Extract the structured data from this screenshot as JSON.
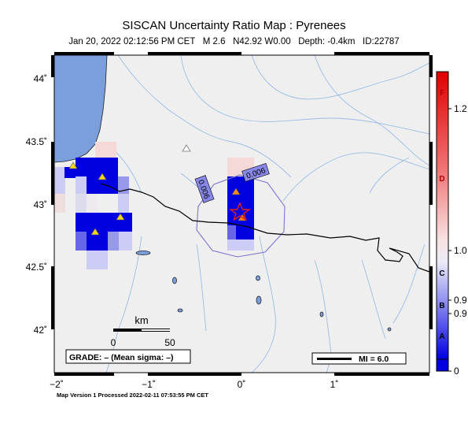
{
  "header": {
    "title": "SISCAN Uncertainty Ratio Map : Pyrenees",
    "subtitle": "Jan 20, 2022 02:12:56 PM CET   M 2.6   N42.92 W0.00   Depth: -0.4km   ID:22787"
  },
  "map": {
    "lat_ticks": [
      {
        "label": "44˚",
        "value": 44.0
      },
      {
        "label": "43.5˚",
        "value": 43.5
      },
      {
        "label": "43˚",
        "value": 43.0
      },
      {
        "label": "42.5˚",
        "value": 42.5
      },
      {
        "label": "42˚",
        "value": 42.0
      }
    ],
    "lon_ticks": [
      {
        "label": "−2˚",
        "value": -2
      },
      {
        "label": "−1˚",
        "value": -1
      },
      {
        "label": "0˚",
        "value": 0
      },
      {
        "label": "1˚",
        "value": 1
      }
    ],
    "contour_labels": [
      "0.006",
      "0.006"
    ],
    "scale_bar": {
      "unit": "km",
      "min_label": "0",
      "max_label": "50"
    },
    "grade_text": "GRADE: – (Mean sigma: –)",
    "mi_text": "MI = 6.0",
    "colors": {
      "ocean": "#7a9fdc",
      "land": "#efefef",
      "rivers": "#9bbce6",
      "border": "#000000",
      "high": "#0000e0"
    }
  },
  "colorbar": {
    "letters": [
      "F",
      "D",
      "C",
      "B",
      "A"
    ],
    "values": [
      "1.2",
      "1.0",
      "0.9",
      "0.9",
      "0"
    ]
  },
  "footer": {
    "text": "Map Version 1 Processed 2022-02-11 07:53:55 PM CET"
  }
}
